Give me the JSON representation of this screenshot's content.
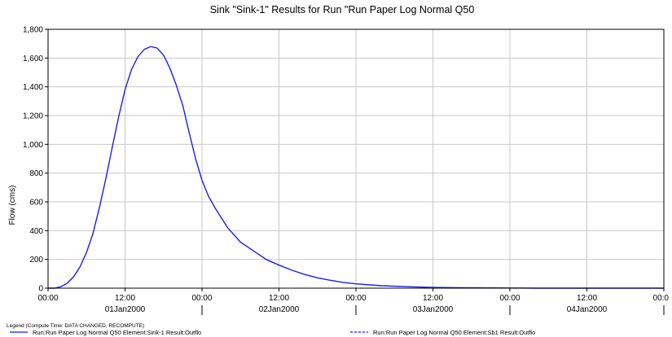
{
  "chart_data": {
    "type": "line",
    "title": "Sink \"Sink-1\" Results for Run \"Run Paper Log Normal Q50",
    "ylabel": "Flow (cms)",
    "xlabel": "",
    "ylim": [
      0,
      1800
    ],
    "yticks": [
      "0",
      "200",
      "400",
      "600",
      "800",
      "1,000",
      "1,200",
      "1,400",
      "1,600",
      "1,800"
    ],
    "xlim_hours": [
      0,
      96
    ],
    "xtick_labels": [
      "00:00",
      "12:00",
      "00:00",
      "12:00",
      "00:00",
      "12:00",
      "00:00",
      "12:00",
      "00:0"
    ],
    "date_labels": [
      "01Jan2000",
      "02Jan2000",
      "03Jan2000",
      "04Jan2000"
    ],
    "grid": true,
    "series": [
      {
        "name": "Run:Run Paper Log Normal Q50 Element:Sink-1 Result:Outflo",
        "color": "#1f1fe0",
        "style": "solid",
        "x": [
          0,
          1,
          2,
          3,
          4,
          5,
          6,
          7,
          8,
          9,
          10,
          11,
          12,
          13,
          14,
          15,
          16,
          17,
          18,
          19,
          20,
          21,
          22,
          23,
          24,
          25,
          26,
          27,
          28,
          29,
          30,
          32,
          34,
          36,
          38,
          40,
          42,
          44,
          46,
          48,
          52,
          56,
          60,
          64,
          68,
          72,
          76,
          80,
          84,
          88,
          92,
          96
        ],
        "y": [
          0,
          0,
          10,
          35,
          80,
          150,
          250,
          380,
          560,
          760,
          980,
          1190,
          1380,
          1520,
          1610,
          1660,
          1680,
          1670,
          1620,
          1530,
          1410,
          1270,
          1080,
          900,
          750,
          640,
          560,
          490,
          420,
          370,
          320,
          260,
          200,
          160,
          125,
          95,
          72,
          55,
          40,
          30,
          17,
          10,
          5,
          3,
          2,
          1,
          0,
          0,
          0,
          0,
          0,
          0
        ]
      },
      {
        "name": "Run:Run Paper Log Normal Q50 Element:Sb1 Result:Outflo",
        "color": "#1f1fe0",
        "style": "dashed",
        "x": [
          0,
          1,
          2,
          3,
          4,
          5,
          6,
          7,
          8,
          9,
          10,
          11,
          12,
          13,
          14,
          15,
          16,
          17,
          18,
          19,
          20,
          21,
          22,
          23,
          24,
          25,
          26,
          27,
          28,
          29,
          30,
          32,
          34,
          36,
          38,
          40,
          42,
          44,
          46,
          48,
          52,
          56,
          60,
          64,
          68,
          72,
          76,
          80,
          84,
          88,
          92,
          96
        ],
        "y": [
          0,
          0,
          10,
          35,
          80,
          150,
          250,
          380,
          560,
          760,
          980,
          1190,
          1380,
          1520,
          1610,
          1660,
          1680,
          1670,
          1620,
          1530,
          1410,
          1270,
          1080,
          900,
          750,
          640,
          560,
          490,
          420,
          370,
          320,
          260,
          200,
          160,
          125,
          95,
          72,
          55,
          40,
          30,
          17,
          10,
          5,
          3,
          2,
          1,
          0,
          0,
          0,
          0,
          0,
          0
        ]
      }
    ],
    "legend_header": "Legend (Compute Time: DATA CHANGED, RECOMPUTE)",
    "legend_placement": "bottom"
  }
}
